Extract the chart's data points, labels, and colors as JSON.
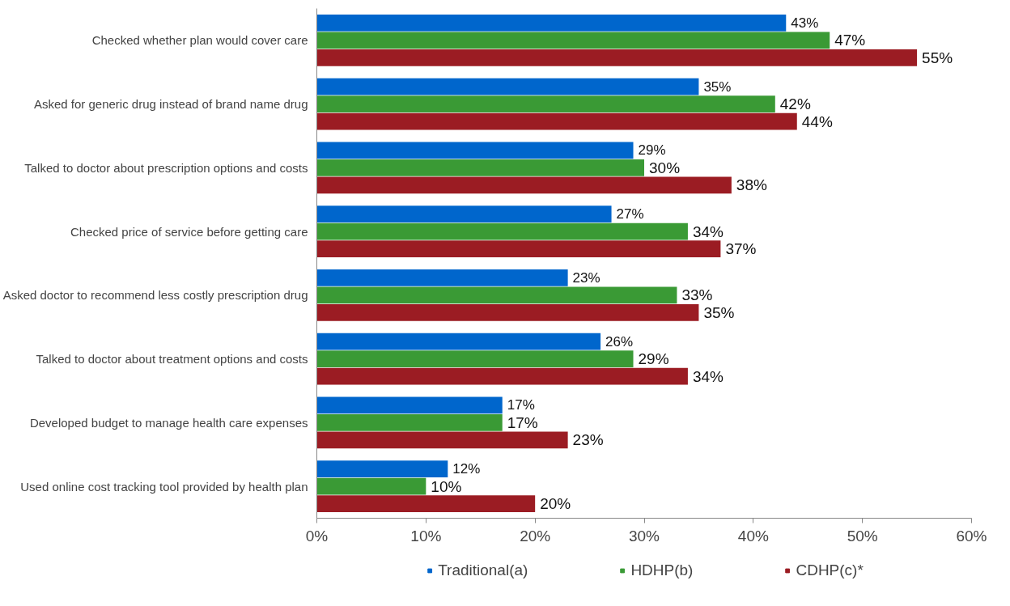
{
  "chart_data": {
    "type": "bar",
    "orientation": "horizontal",
    "categories": [
      "Checked whether plan would cover care",
      "Asked for generic drug instead of brand name drug",
      "Talked to doctor about prescription options and costs",
      "Checked price of service before getting care",
      "Asked doctor to recommend less costly prescription drug",
      "Talked to doctor about treatment options and costs",
      "Developed budget to manage health care expenses",
      "Used online cost tracking tool provided by health plan"
    ],
    "series": [
      {
        "name": "Traditional(a)",
        "color": "#0066cc",
        "values": [
          43,
          35,
          29,
          27,
          23,
          26,
          17,
          12
        ],
        "value_labels": [
          "43%",
          "35%",
          "29%",
          "27%",
          "23%",
          "26%",
          "17%",
          "12%"
        ]
      },
      {
        "name": "HDHP(b)",
        "color": "#3a9a35",
        "values": [
          47,
          42,
          30,
          34,
          33,
          29,
          17,
          10
        ],
        "value_labels": [
          "47%",
          "42%",
          "30%",
          "34%",
          "33%",
          "29%",
          "17%",
          "10%"
        ]
      },
      {
        "name": "CDHP(c)*",
        "color": "#9b1c23",
        "values": [
          55,
          44,
          38,
          37,
          35,
          34,
          23,
          20
        ],
        "value_labels": [
          "55%",
          "44%",
          "38%",
          "37%",
          "35%",
          "34%",
          "23%",
          "20%"
        ]
      }
    ],
    "xlim": [
      0,
      60
    ],
    "xticks": [
      {
        "value": 0,
        "label": "0%"
      },
      {
        "value": 10,
        "label": "10%"
      },
      {
        "value": 20,
        "label": "20%"
      },
      {
        "value": 30,
        "label": "30%"
      },
      {
        "value": 40,
        "label": "40%"
      },
      {
        "value": 50,
        "label": "50%"
      },
      {
        "value": 60,
        "label": "60%"
      }
    ],
    "grid": false,
    "legend": "bottom"
  }
}
